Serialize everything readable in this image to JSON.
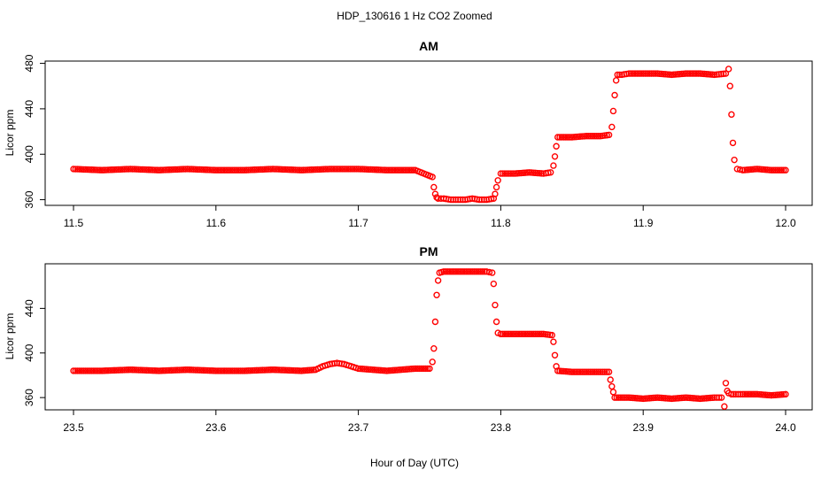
{
  "figure": {
    "title": "HDP_130616  1 Hz CO2 Zoomed",
    "xlabel": "Hour of Day (UTC)"
  },
  "colors": {
    "points": "#ff0000",
    "axes": "#000000"
  },
  "chart_data": [
    {
      "type": "scatter",
      "title": "AM",
      "xlabel": "Hour of Day (UTC)",
      "ylabel": "Licor ppm",
      "xlim": [
        11.5,
        12.0
      ],
      "ylim": [
        355,
        482
      ],
      "x_ticks": [
        11.5,
        11.6,
        11.7,
        11.8,
        11.9,
        12.0
      ],
      "x_tick_labels": [
        "11.5",
        "11.6",
        "11.7",
        "11.8",
        "11.9",
        "12.0"
      ],
      "y_ticks": [
        360,
        400,
        440,
        480
      ],
      "y_tick_labels": [
        "360",
        "400",
        "440",
        "480"
      ],
      "grid": false,
      "marker": "open-circle",
      "series": [
        {
          "x": [
            11.5,
            11.52,
            11.54,
            11.56,
            11.58,
            11.6,
            11.62,
            11.64,
            11.66,
            11.68,
            11.7,
            11.72,
            11.74,
            11.752,
            11.753,
            11.754,
            11.755,
            11.756,
            11.76,
            11.765,
            11.77,
            11.775,
            11.78,
            11.785,
            11.79,
            11.795,
            11.796,
            11.797,
            11.798,
            11.8,
            11.81,
            11.82,
            11.83,
            11.835,
            11.837,
            11.838,
            11.839,
            11.84,
            11.85,
            11.86,
            11.87,
            11.876,
            11.878,
            11.879,
            11.88,
            11.881,
            11.882,
            11.885,
            11.89,
            11.9,
            11.91,
            11.92,
            11.93,
            11.94,
            11.95,
            11.958,
            11.96,
            11.961,
            11.962,
            11.963,
            11.964,
            11.966,
            11.97,
            11.98,
            11.99,
            12.0
          ],
          "y": [
            387,
            386,
            387,
            386,
            387,
            386,
            386,
            387,
            386,
            387,
            387,
            386,
            386,
            380,
            371,
            365,
            362,
            361,
            361,
            360,
            360,
            360,
            361,
            360,
            360,
            361,
            365,
            371,
            377,
            383,
            383,
            384,
            383,
            384,
            390,
            398,
            407,
            415,
            415,
            416,
            416,
            417,
            424,
            438,
            452,
            465,
            470,
            470,
            471,
            471,
            471,
            470,
            471,
            471,
            470,
            471,
            475,
            460,
            435,
            410,
            395,
            387,
            386,
            387,
            386,
            386
          ]
        }
      ]
    },
    {
      "type": "scatter",
      "title": "PM",
      "xlabel": "Hour of Day (UTC)",
      "ylabel": "Licor ppm",
      "xlim": [
        23.5,
        24.0
      ],
      "ylim": [
        349,
        480
      ],
      "x_ticks": [
        23.5,
        23.6,
        23.7,
        23.8,
        23.9,
        24.0
      ],
      "x_tick_labels": [
        "23.5",
        "23.6",
        "23.7",
        "23.8",
        "23.9",
        "24.0"
      ],
      "y_ticks": [
        360,
        400,
        440
      ],
      "y_tick_labels": [
        "360",
        "400",
        "440"
      ],
      "grid": false,
      "marker": "open-circle",
      "series": [
        {
          "x": [
            23.5,
            23.52,
            23.54,
            23.56,
            23.58,
            23.6,
            23.62,
            23.64,
            23.66,
            23.67,
            23.675,
            23.68,
            23.685,
            23.69,
            23.695,
            23.7,
            23.71,
            23.72,
            23.73,
            23.74,
            23.75,
            23.752,
            23.753,
            23.754,
            23.755,
            23.756,
            23.757,
            23.76,
            23.77,
            23.78,
            23.79,
            23.794,
            23.795,
            23.796,
            23.797,
            23.798,
            23.8,
            23.81,
            23.82,
            23.83,
            23.836,
            23.837,
            23.838,
            23.839,
            23.84,
            23.85,
            23.86,
            23.87,
            23.876,
            23.877,
            23.878,
            23.879,
            23.88,
            23.89,
            23.9,
            23.91,
            23.92,
            23.93,
            23.94,
            23.95,
            23.955,
            23.957,
            23.958,
            23.959,
            23.96,
            23.962,
            23.965,
            23.97,
            23.98,
            23.99,
            24.0
          ],
          "y": [
            384,
            384,
            385,
            384,
            385,
            384,
            384,
            385,
            384,
            385,
            388,
            390,
            391,
            390,
            388,
            386,
            385,
            384,
            385,
            386,
            386,
            392,
            404,
            428,
            452,
            465,
            472,
            473,
            473,
            473,
            473,
            472,
            462,
            443,
            428,
            418,
            417,
            417,
            417,
            417,
            416,
            410,
            398,
            388,
            384,
            383,
            383,
            383,
            383,
            376,
            370,
            365,
            360,
            360,
            359,
            360,
            359,
            360,
            359,
            360,
            360,
            352,
            373,
            366,
            364,
            363,
            363,
            363,
            363,
            362,
            363
          ]
        }
      ]
    }
  ]
}
